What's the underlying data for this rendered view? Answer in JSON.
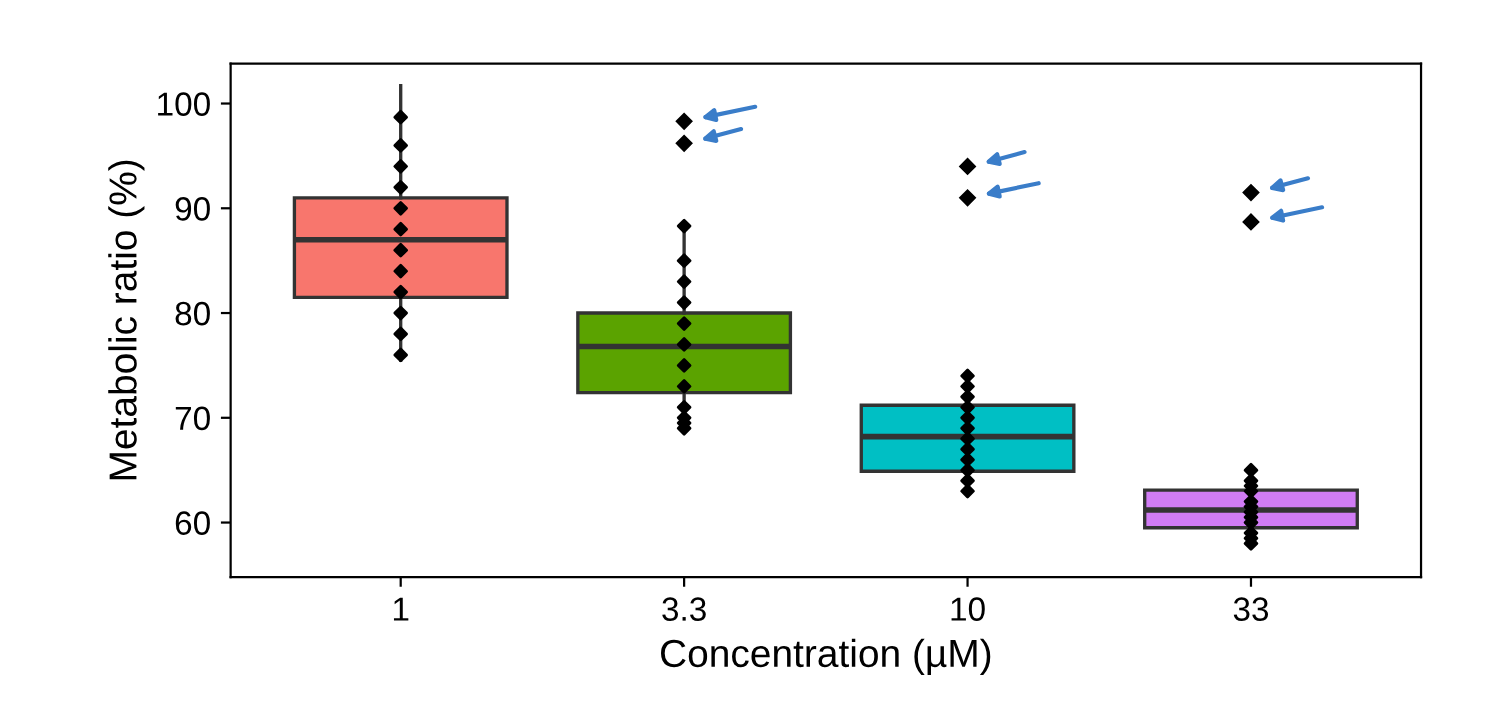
{
  "chart_data": {
    "type": "box",
    "xlabel": "Concentration (µM)",
    "ylabel": "Metabolic ratio (%)",
    "categories": [
      "1",
      "3.3",
      "10",
      "33"
    ],
    "colors": [
      "#f8766d",
      "#5ba300",
      "#00bfc4",
      "#d17cf5"
    ],
    "boxes": [
      {
        "low": 75.5,
        "q1": 81.5,
        "median": 87,
        "q3": 91,
        "high": 101.7
      },
      {
        "low": 69.2,
        "q1": 72.4,
        "median": 76.8,
        "q3": 80,
        "high": 88.1,
        "outliers": [
          98.3,
          96.2
        ]
      },
      {
        "low": 63,
        "q1": 64.9,
        "median": 68.2,
        "q3": 71.2,
        "high": 74,
        "outliers": [
          91,
          94
        ]
      },
      {
        "low": 57.8,
        "q1": 59.5,
        "median": 61.2,
        "q3": 63.1,
        "high": 65,
        "outliers": [
          88.7,
          91.5
        ]
      }
    ],
    "series": [
      {
        "type": "scatter",
        "color": "#000000",
        "marker": "diamond",
        "x": [
          "1",
          "1",
          "1",
          "1",
          "1",
          "1",
          "1",
          "1",
          "1",
          "1",
          "1",
          "1",
          "3.3",
          "3.3",
          "3.3",
          "3.3",
          "3.3",
          "3.3",
          "3.3",
          "3.3",
          "3.3",
          "3.3",
          "3.3",
          "3.3",
          "10",
          "10",
          "10",
          "10",
          "10",
          "10",
          "10",
          "10",
          "10",
          "10",
          "10",
          "10",
          "33",
          "33",
          "33",
          "33",
          "33",
          "33",
          "33",
          "33",
          "33",
          "33",
          "33",
          "33"
        ],
        "values": [
          98.7,
          96,
          94,
          92,
          90,
          88,
          86,
          84,
          82,
          80,
          78,
          76,
          88.3,
          85,
          83,
          81,
          79,
          77,
          75,
          73,
          71,
          70,
          69.5,
          69,
          74,
          73,
          72,
          71,
          70,
          69,
          68,
          67,
          66,
          65,
          64,
          63,
          65,
          64,
          63.5,
          63,
          62,
          61.5,
          61,
          60.5,
          60,
          59,
          58.5,
          58
        ]
      }
    ],
    "ylim": [
      54.8,
      103.8
    ],
    "yticks": [
      60,
      70,
      80,
      90,
      100
    ],
    "grid": false
  }
}
